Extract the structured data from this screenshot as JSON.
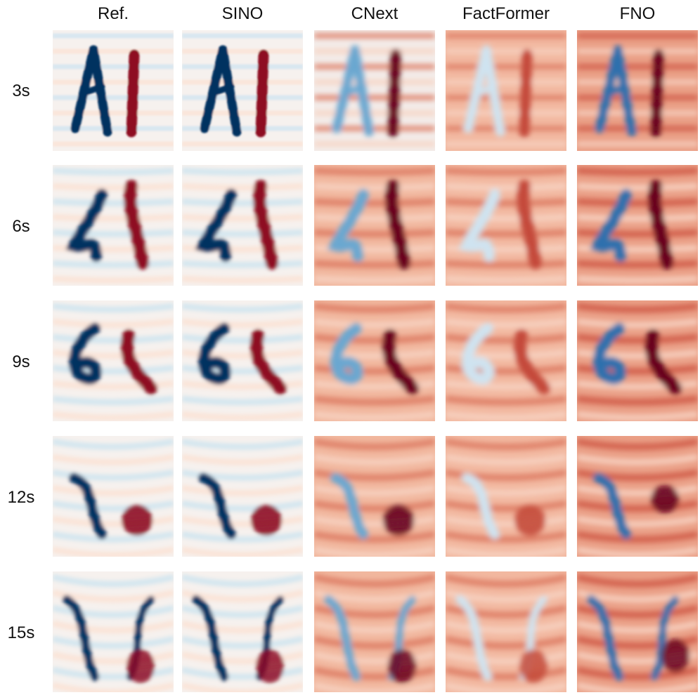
{
  "figure": {
    "columns": [
      {
        "key": "ref",
        "label": "Ref."
      },
      {
        "key": "sino",
        "label": "SINO"
      },
      {
        "key": "cnext",
        "label": "CNext"
      },
      {
        "key": "factformer",
        "label": "FactFormer"
      },
      {
        "key": "fno",
        "label": "FNO"
      }
    ],
    "rows": [
      {
        "label": "3s"
      },
      {
        "label": "6s"
      },
      {
        "label": "9s"
      },
      {
        "label": "12s"
      },
      {
        "label": "15s"
      }
    ],
    "colors": {
      "negative_strong": "#053061",
      "negative_mid": "#4b90c2",
      "neutral_light": "#f6f1ee",
      "positive_light": "#f4c2a8",
      "positive_mid": "#d6604d",
      "positive_strong": "#67001f"
    },
    "colormap": "RdBu_r"
  }
}
